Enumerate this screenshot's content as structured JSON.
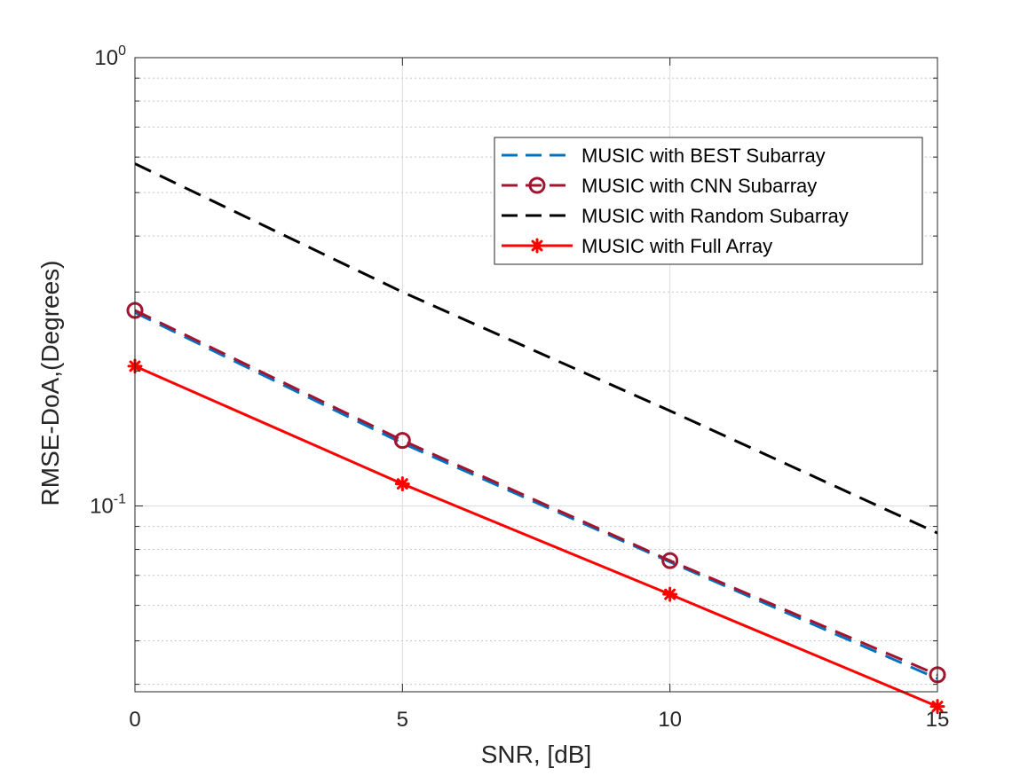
{
  "chart_data": {
    "type": "line",
    "title": "",
    "xlabel": "SNR, [dB]",
    "ylabel": "RMSE-DoA,(Degrees)",
    "x": [
      0,
      5,
      10,
      15
    ],
    "xlim": [
      0,
      15
    ],
    "ylim": [
      0.0385,
      1.0
    ],
    "yscale": "log",
    "grid": true,
    "legend_position": "top-right",
    "x_ticks": [
      0,
      5,
      10,
      15
    ],
    "x_tick_labels": [
      "0",
      "5",
      "10",
      "15"
    ],
    "y_ticks": [
      {
        "value": 1.0,
        "base": "10",
        "exp": "0"
      },
      {
        "value": 0.1,
        "base": "10",
        "exp": "-1"
      }
    ],
    "series": [
      {
        "name": "MUSIC with BEST Subarray",
        "values": [
          0.27,
          0.138,
          0.075,
          0.0412
        ],
        "color": "#0072BD",
        "style": "dashed",
        "marker": "none"
      },
      {
        "name": "MUSIC with CNN Subarray",
        "values": [
          0.273,
          0.14,
          0.0755,
          0.042
        ],
        "color": "#A2142F",
        "style": "dashed",
        "marker": "circle"
      },
      {
        "name": "MUSIC with Random Subarray",
        "values": [
          0.58,
          0.3,
          0.163,
          0.087
        ],
        "color": "#000000",
        "style": "dashed",
        "marker": "none"
      },
      {
        "name": "MUSIC with Full Array",
        "values": [
          0.205,
          0.112,
          0.0635,
          0.0357
        ],
        "color": "#FF0000",
        "style": "solid",
        "marker": "asterisk"
      }
    ]
  }
}
